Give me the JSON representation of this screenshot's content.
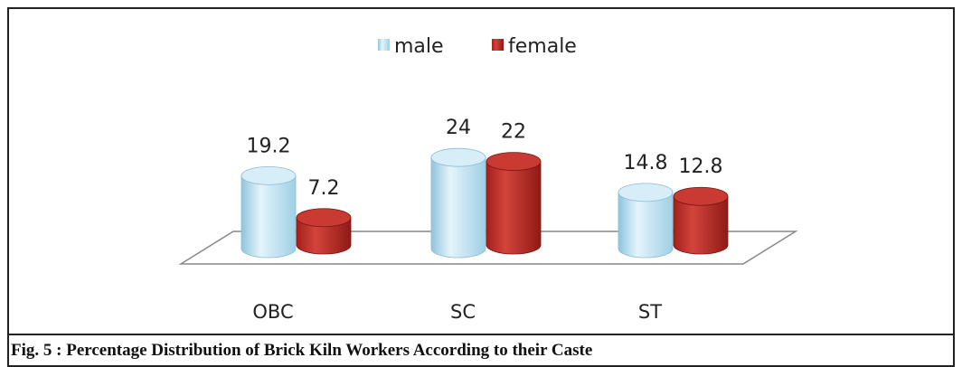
{
  "chart_data": {
    "type": "bar3d",
    "categories": [
      "OBC",
      "SC",
      "ST"
    ],
    "series": [
      {
        "name": "male",
        "color": "#bfe2f3",
        "values": [
          19.2,
          24,
          14.8
        ]
      },
      {
        "name": "female",
        "color": "#c0302a",
        "values": [
          7.2,
          22,
          12.8
        ]
      }
    ],
    "caption": "Fig. 5 : Percentage Distribution of Brick Kiln Workers According to their Caste",
    "legend": "top"
  }
}
